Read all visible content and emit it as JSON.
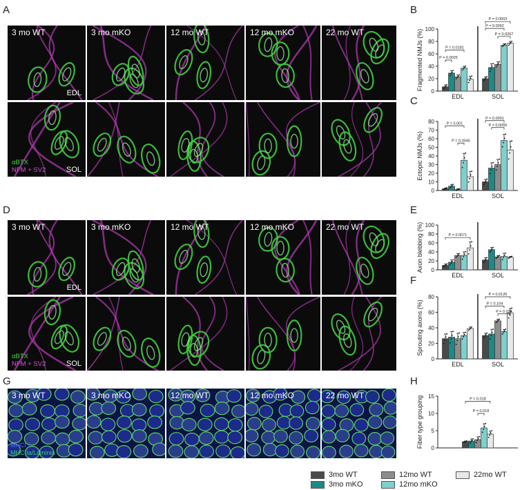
{
  "letters": {
    "A": "A",
    "B": "B",
    "C": "C",
    "D": "D",
    "E": "E",
    "F": "F",
    "G": "G",
    "H": "H"
  },
  "colors": {
    "wt3": "#4a4a4a",
    "mko3": "#1d8a86",
    "wt12": "#8c8c8c",
    "mko12": "#7fcfcc",
    "wt22": "#e8e8e8"
  },
  "groups": [
    "3mo WT",
    "3mo mKO",
    "12mo WT",
    "12mo mKO",
    "22mo WT"
  ],
  "panelA": {
    "columns": [
      "3 mo WT",
      "3 mo mKO",
      "12 mo WT",
      "12 mo mKO",
      "22 mo WT"
    ],
    "row1_tag": "EDL",
    "row2_tag": "SOL",
    "stain1": "αBTX",
    "stain2": "NFM + SV2"
  },
  "panelD": {
    "columns": [
      "3 mo WT",
      "3 mo mKO",
      "12 mo WT",
      "12 mo mKO",
      "22 mo WT"
    ],
    "row1_tag": "EDL",
    "row2_tag": "SOL",
    "stain1": "αBTX",
    "stain2": "NFM + SV2"
  },
  "panelG": {
    "columns": [
      "3 mo WT",
      "3 mo mKO",
      "12 mo WT",
      "12 mo mKO",
      "22 mo WT"
    ],
    "stain1": "MHCI /",
    "stain2": "MHCIIa/Laminin"
  },
  "legend": [
    {
      "label": "3mo WT",
      "color": "#4a4a4a"
    },
    {
      "label": "12mo WT",
      "color": "#8c8c8c"
    },
    {
      "label": "22mo WT",
      "color": "#e8e8e8"
    },
    {
      "label": "3mo mKO",
      "color": "#1d8a86"
    },
    {
      "label": "12mo mKO",
      "color": "#7fcfcc"
    }
  ],
  "chart_data": [
    {
      "id": "B",
      "type": "bar",
      "ylabel": "Fragmented NMJs (%)",
      "ylim": [
        0,
        100
      ],
      "yticks": [
        0,
        20,
        40,
        60,
        80,
        100
      ],
      "groups": [
        "EDL",
        "SOL"
      ],
      "series": [
        {
          "name": "3mo WT",
          "values": [
            7,
            20
          ],
          "err": [
            3,
            3
          ]
        },
        {
          "name": "3mo mKO",
          "values": [
            29,
            38
          ],
          "err": [
            4,
            6
          ]
        },
        {
          "name": "12mo WT",
          "values": [
            23,
            43
          ],
          "err": [
            3,
            4
          ]
        },
        {
          "name": "12mo mKO",
          "values": [
            37,
            74
          ],
          "err": [
            3,
            2
          ]
        },
        {
          "name": "22mo WT",
          "values": [
            19,
            77
          ],
          "err": [
            5,
            3
          ]
        }
      ],
      "annotations": [
        {
          "text": "P = 0.0181",
          "g": 0,
          "from": 0,
          "to": 3,
          "y": 66
        },
        {
          "text": "P = 0.0025",
          "g": 0,
          "from": 0,
          "to": 1,
          "y": 50
        },
        {
          "text": "P = 0.0003",
          "g": 1,
          "from": 0,
          "to": 4,
          "y": 112
        },
        {
          "text": "P = 0.0062",
          "g": 1,
          "from": 0,
          "to": 3,
          "y": 101
        },
        {
          "text": "P = 0.0267",
          "g": 1,
          "from": 2,
          "to": 4,
          "y": 88
        }
      ]
    },
    {
      "id": "C",
      "type": "bar",
      "ylabel": "Ectopic NMJs (%)",
      "ylim": [
        0,
        80
      ],
      "yticks": [
        0,
        10,
        20,
        30,
        40,
        50,
        60,
        70,
        80
      ],
      "groups": [
        "EDL",
        "SOL"
      ],
      "series": [
        {
          "name": "3mo WT",
          "values": [
            2,
            10
          ],
          "err": [
            1,
            3
          ]
        },
        {
          "name": "3mo mKO",
          "values": [
            5,
            26
          ],
          "err": [
            2,
            6
          ]
        },
        {
          "name": "12mo WT",
          "values": [
            1,
            30
          ],
          "err": [
            1,
            6
          ]
        },
        {
          "name": "12mo mKO",
          "values": [
            35,
            58
          ],
          "err": [
            8,
            7
          ]
        },
        {
          "name": "22mo WT",
          "values": [
            16,
            47
          ],
          "err": [
            6,
            10
          ]
        }
      ],
      "annotations": [
        {
          "text": "P = 0.001",
          "g": 0,
          "from": 0,
          "to": 3,
          "y": 75
        },
        {
          "text": "P = 0.0045",
          "g": 0,
          "from": 2,
          "to": 3,
          "y": 55
        },
        {
          "text": "P = 0.0001",
          "g": 1,
          "from": 0,
          "to": 3,
          "y": 81
        },
        {
          "text": "P = 0.0055",
          "g": 1,
          "from": 1,
          "to": 3,
          "y": 73
        }
      ]
    },
    {
      "id": "E",
      "type": "bar",
      "ylabel": "Axon blebbing (%)",
      "ylim": [
        0,
        100
      ],
      "yticks": [
        0,
        20,
        40,
        60,
        80,
        100
      ],
      "groups": [
        "EDL",
        "SOL"
      ],
      "series": [
        {
          "name": "3mo WT",
          "values": [
            10,
            22
          ],
          "err": [
            3,
            5
          ]
        },
        {
          "name": "3mo mKO",
          "values": [
            17,
            45
          ],
          "err": [
            5,
            5
          ]
        },
        {
          "name": "12mo WT",
          "values": [
            32,
            29
          ],
          "err": [
            4,
            3
          ]
        },
        {
          "name": "12mo mKO",
          "values": [
            32,
            30
          ],
          "err": [
            8,
            7
          ]
        },
        {
          "name": "22mo WT",
          "values": [
            49,
            28
          ],
          "err": [
            13,
            2
          ]
        }
      ],
      "annotations": [
        {
          "text": "P = 0.0071",
          "g": 0,
          "from": 0,
          "to": 4,
          "y": 72
        }
      ]
    },
    {
      "id": "F",
      "type": "bar",
      "ylabel": "Sprouting axons (%)",
      "ylim": [
        0,
        80
      ],
      "yticks": [
        0,
        20,
        40,
        60,
        80
      ],
      "groups": [
        "EDL",
        "SOL"
      ],
      "series": [
        {
          "name": "3mo WT",
          "values": [
            26,
            30
          ],
          "err": [
            6,
            3
          ]
        },
        {
          "name": "3mo mKO",
          "values": [
            28,
            32
          ],
          "err": [
            7,
            6
          ]
        },
        {
          "name": "12mo WT",
          "values": [
            26,
            49
          ],
          "err": [
            7,
            2
          ]
        },
        {
          "name": "12mo mKO",
          "values": [
            30,
            35
          ],
          "err": [
            4,
            3
          ]
        },
        {
          "name": "22mo WT",
          "values": [
            39,
            59
          ],
          "err": [
            2,
            6
          ]
        }
      ],
      "annotations": [
        {
          "text": "P = 0.0126",
          "g": 1,
          "from": 0,
          "to": 4,
          "y": 80
        },
        {
          "text": "P = 0.104",
          "g": 1,
          "from": 0,
          "to": 3,
          "y": 68
        },
        {
          "text": "P = 0.034",
          "g": 1,
          "from": 2,
          "to": 4,
          "y": 58
        }
      ]
    },
    {
      "id": "H",
      "type": "bar",
      "ylabel": "Fiber type grouping",
      "ylim": [
        0,
        15
      ],
      "yticks": [
        0,
        5,
        10,
        15
      ],
      "groups": [
        ""
      ],
      "series": [
        {
          "name": "3mo WT",
          "values": [
            1.8
          ],
          "err": [
            0.2
          ]
        },
        {
          "name": "3mo mKO",
          "values": [
            2.0
          ],
          "err": [
            0.6
          ]
        },
        {
          "name": "12mo WT",
          "values": [
            2.4
          ],
          "err": [
            0.8
          ]
        },
        {
          "name": "12mo mKO",
          "values": [
            5.8
          ],
          "err": [
            1.2
          ]
        },
        {
          "name": "22mo WT",
          "values": [
            4.0
          ],
          "err": [
            0.9
          ]
        }
      ],
      "annotations": [
        {
          "text": "P = 0.018",
          "g": 0,
          "from": 0,
          "to": 4,
          "y": 13.5
        },
        {
          "text": "P = 0.018",
          "g": 0,
          "from": 2,
          "to": 3,
          "y": 10
        }
      ]
    }
  ]
}
